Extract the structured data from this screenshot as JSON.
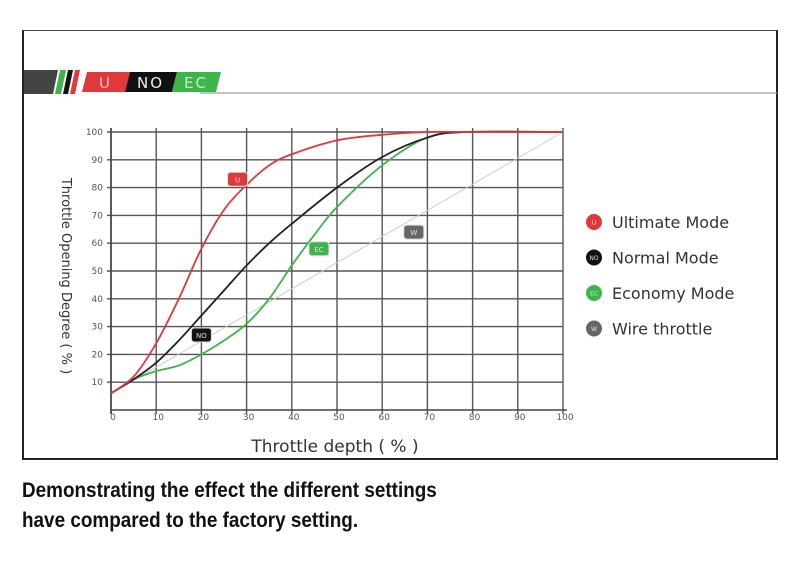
{
  "banner": {
    "labels": [
      "U",
      "NO",
      "EC"
    ]
  },
  "caption": {
    "line1": "Demonstrating the effect the different settings",
    "line2": "have compared to the factory setting."
  },
  "chart_data": {
    "type": "line",
    "title": "",
    "xlabel": "Throttle depth ( % )",
    "ylabel": "Throttle Opening Degree ( % )",
    "xlim": [
      0,
      100
    ],
    "ylim": [
      0,
      100
    ],
    "xticks": [
      0,
      10,
      20,
      30,
      40,
      50,
      60,
      70,
      80,
      90,
      100
    ],
    "yticks": [
      10,
      20,
      30,
      40,
      50,
      60,
      70,
      80,
      90,
      100
    ],
    "grid": true,
    "legend_placement": "right",
    "series": [
      {
        "name": "Ultimate Mode",
        "marker": "U",
        "color": "#e0393b",
        "label_at": [
          28,
          83
        ],
        "x": [
          0,
          5,
          10,
          15,
          20,
          25,
          30,
          35,
          40,
          50,
          60,
          70,
          80,
          100
        ],
        "y": [
          6,
          12,
          24,
          40,
          58,
          72,
          81,
          88,
          92,
          97,
          99,
          100,
          100,
          100
        ]
      },
      {
        "name": "Normal Mode",
        "marker": "NO",
        "color": "#222222",
        "label_at": [
          20,
          27
        ],
        "x": [
          0,
          5,
          10,
          15,
          20,
          25,
          30,
          35,
          40,
          50,
          60,
          70,
          78,
          100
        ],
        "y": [
          6,
          11,
          17,
          25,
          34,
          43,
          52,
          60,
          67,
          80,
          91,
          98,
          100,
          100
        ]
      },
      {
        "name": "Economy Mode",
        "marker": "EC",
        "color": "#3cb54a",
        "label_at": [
          46,
          58
        ],
        "x": [
          0,
          5,
          10,
          15,
          20,
          25,
          30,
          35,
          40,
          45,
          50,
          60,
          70,
          80,
          100
        ],
        "y": [
          6,
          11,
          14,
          16,
          20,
          25,
          31,
          40,
          52,
          63,
          73,
          88,
          98,
          100,
          100
        ]
      },
      {
        "name": "Wire throttle",
        "marker": "W",
        "color": "#cccccc",
        "label_at": [
          67,
          64
        ],
        "x": [
          0,
          100
        ],
        "y": [
          6,
          100
        ]
      }
    ],
    "legend_colors": [
      "#e0393b",
      "#111111",
      "#3cb54a",
      "#666666"
    ]
  }
}
